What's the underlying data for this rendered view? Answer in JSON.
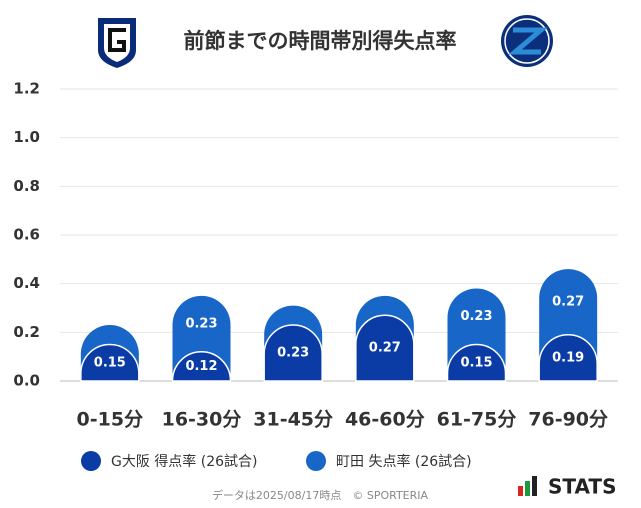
{
  "chart_data": {
    "type": "stacked_bar",
    "title": "前節までの時間帯別得失点率",
    "categories": [
      "0-15分",
      "16-30分",
      "31-45分",
      "46-60分",
      "61-75分",
      "76-90分"
    ],
    "series": [
      {
        "name": "G大阪 得点率 (26試合)",
        "color": "#0b3ca6",
        "values": [
          0.15,
          0.12,
          0.23,
          0.27,
          0.15,
          0.19
        ]
      },
      {
        "name": "町田 失点率 (26試合)",
        "color": "#1766c8",
        "values": [
          0.08,
          0.23,
          0.08,
          0.08,
          0.23,
          0.27
        ],
        "value_labels": [
          null,
          "0.23",
          null,
          null,
          "0.23",
          "0.27"
        ]
      }
    ],
    "ylim": [
      0,
      1.2
    ],
    "yticks": [
      {
        "value": 0,
        "label": "0.0"
      },
      0.2,
      0.4,
      0.6,
      0.8,
      {
        "value": 1,
        "label": "1.0"
      },
      1.2
    ],
    "grid": true,
    "legend": "bottom"
  },
  "footer": "データは2025/08/17時点　© SPORTERIA",
  "brand": "STATS"
}
